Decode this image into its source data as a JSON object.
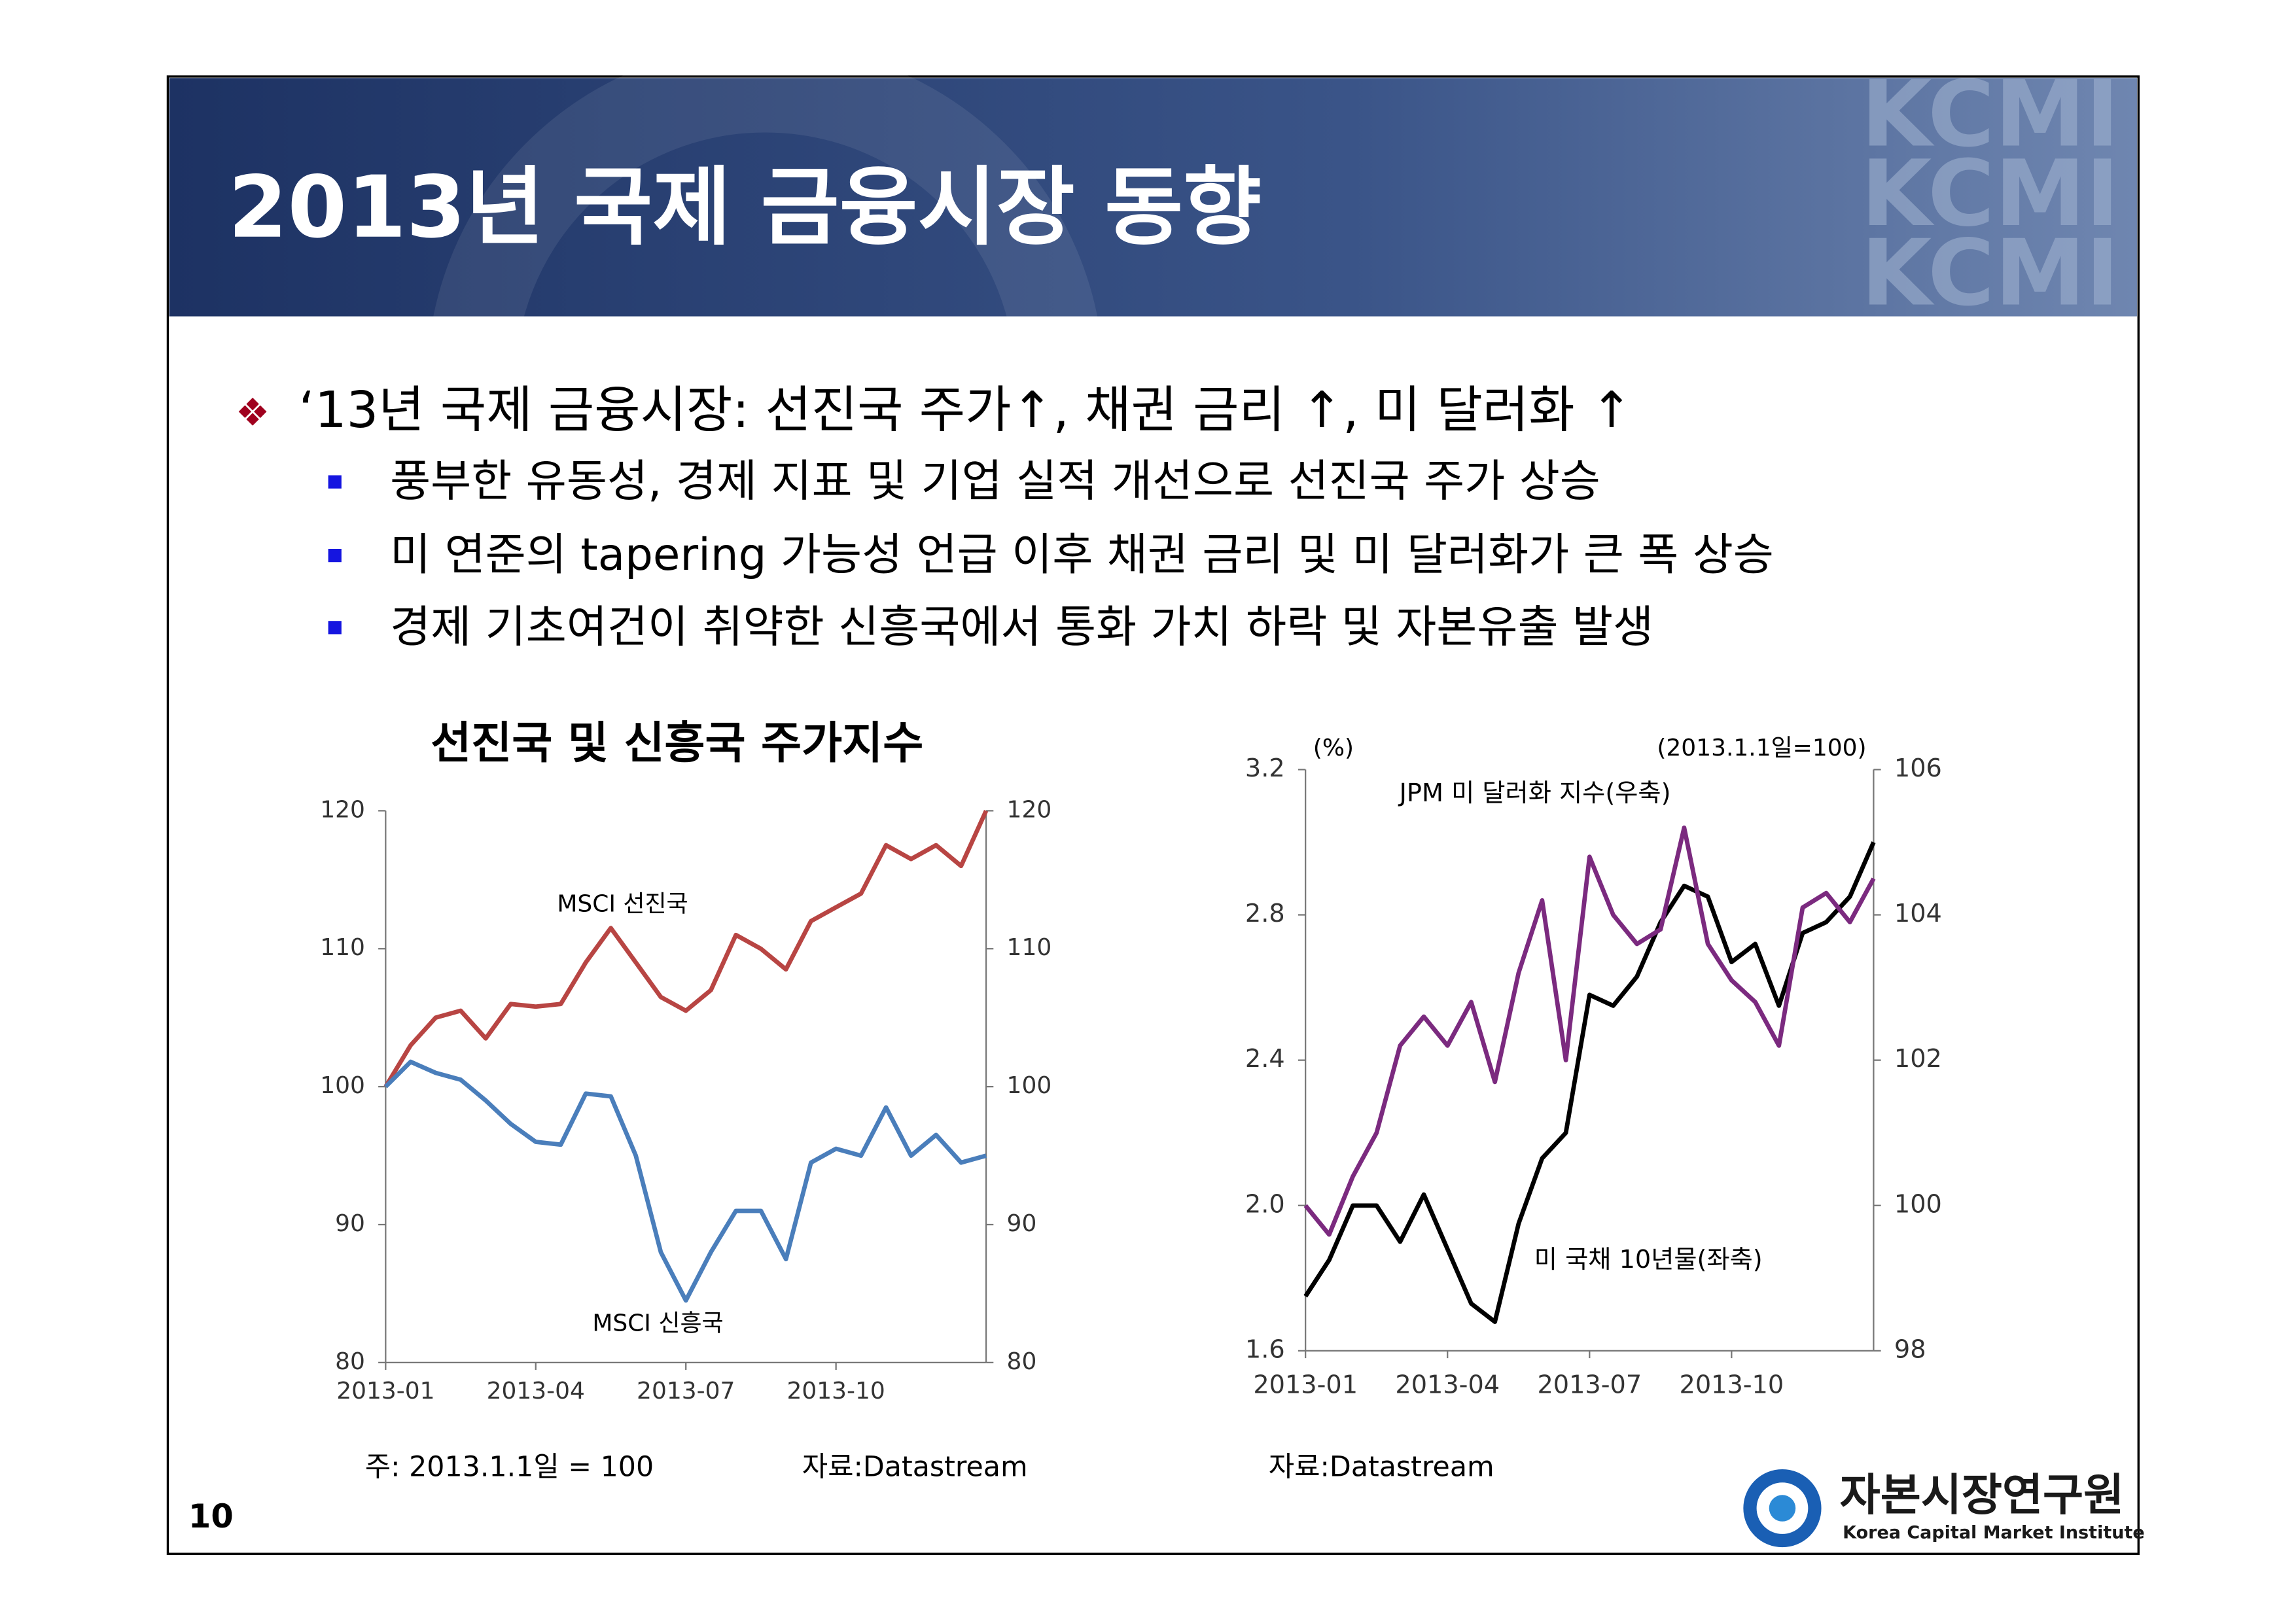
{
  "header": {
    "title": "2013년 국제 금융시장 동향",
    "watermark": [
      "KCMI",
      "KCMI",
      "KCMI"
    ]
  },
  "bullets": {
    "main": "‘13년 국제 금융시장: 선진국 주가↑, 채권 금리 ↑, 미 달러화 ↑",
    "sub": [
      "풍부한 유동성, 경제 지표 및 기업 실적 개선으로 선진국 주가 상승",
      "미 연준의 tapering 가능성 언급 이후 채권 금리 및 미 달러화가 큰 폭 상승",
      "경제 기초여건이 취약한 신흥국에서 통화 가치 하락 및 자본유출 발생"
    ]
  },
  "chart_data": [
    {
      "type": "line",
      "title": "선진국 및 신흥국 주가지수",
      "categories": [
        "2013-01",
        null,
        null,
        null,
        null,
        null,
        "2013-04",
        null,
        null,
        null,
        null,
        null,
        "2013-07",
        null,
        null,
        null,
        null,
        null,
        "2013-10",
        null,
        null,
        null,
        null,
        null,
        null
      ],
      "series": [
        {
          "name": "MSCI 선진국",
          "color": "#b84543",
          "axis": "y",
          "values": [
            100,
            103,
            105,
            105.5,
            103.5,
            106,
            105.8,
            106,
            109,
            111.5,
            109,
            106.5,
            105.5,
            107,
            111,
            110,
            108.5,
            112,
            113,
            114,
            117.5,
            116.5,
            117.5,
            116,
            120
          ]
        },
        {
          "name": "MSCI  신흥국",
          "color": "#4a7ebb",
          "axis": "y",
          "values": [
            100,
            101.8,
            101,
            100.5,
            99,
            97.3,
            96,
            95.8,
            99.5,
            99.3,
            95,
            88,
            84.5,
            88,
            91,
            91,
            87.5,
            94.5,
            95.5,
            95,
            98.5,
            95,
            96.5,
            94.5,
            95
          ]
        }
      ],
      "ylim": [
        80,
        120
      ],
      "yticks": [
        80,
        90,
        100,
        110,
        120
      ],
      "y2lim": [
        80,
        120
      ],
      "y2ticks": [
        80,
        90,
        100,
        110,
        120
      ],
      "grid": false
    },
    {
      "type": "line",
      "y_label": "(%)",
      "y2_label": "(2013.1.1일=100)",
      "categories": [
        "2013-01",
        null,
        null,
        null,
        null,
        null,
        "2013-04",
        null,
        null,
        null,
        null,
        null,
        "2013-07",
        null,
        null,
        null,
        null,
        null,
        "2013-10",
        null,
        null,
        null,
        null,
        null,
        null
      ],
      "series": [
        {
          "name": "미 국채 10년물(좌축)",
          "color": "#000000",
          "axis": "y",
          "values": [
            1.75,
            1.85,
            2.0,
            2.0,
            1.9,
            2.03,
            1.88,
            1.73,
            1.68,
            1.95,
            2.13,
            2.2,
            2.58,
            2.55,
            2.63,
            2.78,
            2.88,
            2.85,
            2.67,
            2.72,
            2.55,
            2.75,
            2.78,
            2.85,
            3.0
          ]
        },
        {
          "name": "JPM 미 달러화 지수(우축)",
          "color": "#7b2a7f",
          "axis": "y2",
          "values": [
            100,
            99.6,
            100.4,
            101,
            102.2,
            102.6,
            102.2,
            102.8,
            101.7,
            103.2,
            104.2,
            102,
            104.8,
            104,
            103.6,
            103.8,
            105.2,
            103.6,
            103.1,
            102.8,
            102.2,
            104.1,
            104.3,
            103.9,
            104.5
          ]
        }
      ],
      "ylim": [
        1.6,
        3.2
      ],
      "yticks": [
        1.6,
        {
          "value": 2,
          "label": "2.0"
        },
        2.4,
        2.8,
        3.2
      ],
      "y2lim": [
        98,
        106
      ],
      "y2ticks": [
        98,
        100,
        102,
        104,
        106
      ],
      "grid": false
    }
  ],
  "notes": {
    "left_note": "주: 2013.1.1일 = 100",
    "left_source": "자료:Datastream",
    "right_source": "자료:Datastream"
  },
  "footer": {
    "page": "10",
    "logo_ko": "자본시장연구원",
    "logo_en": "Korea Capital Market Institute"
  }
}
